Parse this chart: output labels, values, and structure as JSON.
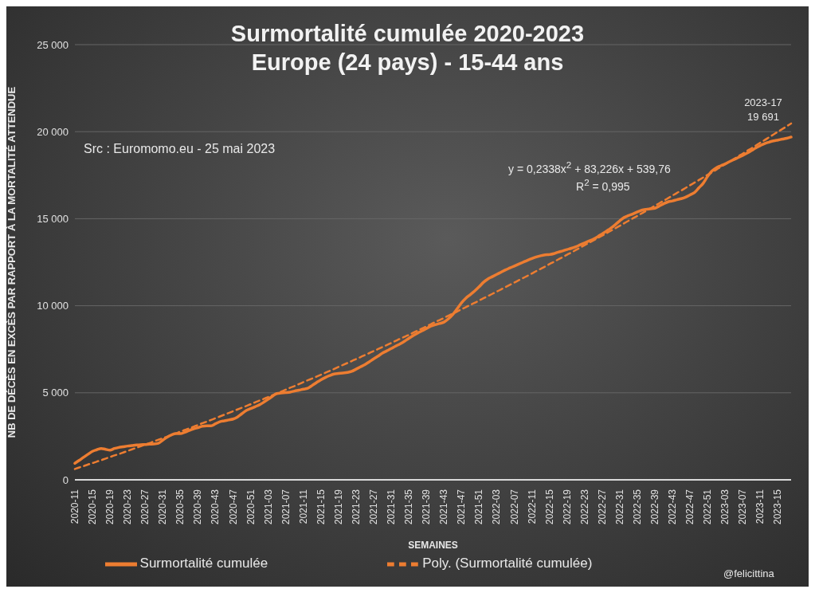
{
  "chart_data": {
    "type": "line",
    "title": "Surmortalité cumulée 2020-2023",
    "subtitle": "Europe (24 pays) - 15-44 ans",
    "xlabel": "SEMAINES",
    "ylabel": "NB DE DÉCÈS EN EXCÈS PAR RAPPORT À LA MORTALITÉ ATTENDUE",
    "categories": [
      "2020-11",
      null,
      null,
      null,
      "2020-15",
      null,
      null,
      null,
      "2020-19",
      null,
      null,
      null,
      "2020-23",
      null,
      null,
      null,
      "2020-27",
      null,
      null,
      null,
      "2020-31",
      null,
      null,
      null,
      "2020-35",
      null,
      null,
      null,
      "2020-39",
      null,
      null,
      null,
      "2020-43",
      null,
      null,
      null,
      "2020-47",
      null,
      null,
      null,
      "2020-51",
      null,
      null,
      null,
      "2021-03",
      null,
      null,
      null,
      "2021-07",
      null,
      null,
      null,
      "2021-11",
      null,
      null,
      null,
      "2021-15",
      null,
      null,
      null,
      "2021-19",
      null,
      null,
      null,
      "2021-23",
      null,
      null,
      null,
      "2021-27",
      null,
      null,
      null,
      "2021-31",
      null,
      null,
      null,
      "2021-35",
      null,
      null,
      null,
      "2021-39",
      null,
      null,
      null,
      "2021-43",
      null,
      null,
      null,
      "2021-47",
      null,
      null,
      null,
      "2021-51",
      null,
      null,
      null,
      "2022-03",
      null,
      null,
      null,
      "2022-07",
      null,
      null,
      null,
      "2022-11",
      null,
      null,
      null,
      "2022-15",
      null,
      null,
      null,
      "2022-19",
      null,
      null,
      null,
      "2022-23",
      null,
      null,
      null,
      "2022-27",
      null,
      null,
      null,
      "2022-31",
      null,
      null,
      null,
      "2022-35",
      null,
      null,
      null,
      "2022-39",
      null,
      null,
      null,
      "2022-43",
      null,
      null,
      null,
      "2022-47",
      null,
      null,
      null,
      "2022-51",
      null,
      null,
      null,
      "2023-03",
      null,
      null,
      null,
      "2023-07",
      null,
      null,
      null,
      "2023-11",
      null,
      null,
      null,
      "2023-15",
      null,
      null,
      null
    ],
    "series": [
      {
        "name": "Surmortalité cumulée",
        "color": "#ed7d31",
        "line_style": "solid",
        "values": [
          950,
          1120,
          1300,
          1470,
          1640,
          1730,
          1800,
          1750,
          1710,
          1800,
          1860,
          1900,
          1940,
          1970,
          2000,
          2020,
          2030,
          2050,
          2060,
          2100,
          2280,
          2450,
          2580,
          2650,
          2650,
          2730,
          2830,
          2930,
          3000,
          3080,
          3100,
          3100,
          3220,
          3340,
          3390,
          3440,
          3490,
          3610,
          3800,
          3980,
          4090,
          4200,
          4310,
          4460,
          4630,
          4810,
          4960,
          4990,
          5010,
          5040,
          5100,
          5150,
          5210,
          5260,
          5420,
          5590,
          5750,
          5880,
          5990,
          6080,
          6110,
          6140,
          6170,
          6230,
          6360,
          6490,
          6620,
          6780,
          6950,
          7110,
          7280,
          7410,
          7540,
          7680,
          7810,
          7960,
          8130,
          8290,
          8430,
          8560,
          8690,
          8830,
          8910,
          8980,
          9060,
          9250,
          9500,
          9830,
          10170,
          10440,
          10640,
          10850,
          11090,
          11350,
          11540,
          11670,
          11800,
          11930,
          12060,
          12170,
          12280,
          12390,
          12500,
          12610,
          12710,
          12800,
          12870,
          12920,
          12940,
          12990,
          13080,
          13150,
          13230,
          13300,
          13390,
          13500,
          13610,
          13720,
          13830,
          13970,
          14130,
          14290,
          14460,
          14660,
          14880,
          15070,
          15180,
          15280,
          15390,
          15490,
          15540,
          15570,
          15600,
          15730,
          15860,
          15970,
          16020,
          16090,
          16150,
          16240,
          16370,
          16500,
          16770,
          17040,
          17430,
          17740,
          17930,
          18040,
          18150,
          18280,
          18400,
          18520,
          18640,
          18770,
          18920,
          19070,
          19200,
          19320,
          19400,
          19470,
          19520,
          19570,
          19620,
          19691
        ]
      },
      {
        "name": "Poly. (Surmortalité cumulée)",
        "color": "#ed7d31",
        "type": "line",
        "line_style": "dashed",
        "values": [
          620,
          710,
          790,
          880,
          960,
          1050,
          1130,
          1220,
          1310,
          1400,
          1480,
          1570,
          1660,
          1750,
          1840,
          1930,
          2020,
          2110,
          2210,
          2300,
          2390,
          2480,
          2580,
          2670,
          2770,
          2860,
          2960,
          3050,
          3150,
          3250,
          3340,
          3440,
          3540,
          3640,
          3740,
          3840,
          3940,
          4040,
          4140,
          4240,
          4340,
          4450,
          4550,
          4650,
          4760,
          4860,
          4970,
          5070,
          5180,
          5290,
          5390,
          5500,
          5610,
          5720,
          5820,
          5930,
          6040,
          6150,
          6260,
          6370,
          6490,
          6600,
          6710,
          6820,
          6940,
          7050,
          7170,
          7280,
          7400,
          7510,
          7630,
          7740,
          7860,
          7980,
          8100,
          8210,
          8330,
          8450,
          8570,
          8690,
          8810,
          8940,
          9060,
          9180,
          9300,
          9430,
          9550,
          9670,
          9800,
          9920,
          10050,
          10170,
          10300,
          10430,
          10560,
          10680,
          10810,
          10940,
          11070,
          11200,
          11330,
          11460,
          11590,
          11720,
          11850,
          11990,
          12120,
          12250,
          12390,
          12520,
          12660,
          12790,
          12930,
          13060,
          13200,
          13340,
          13480,
          13610,
          13750,
          13890,
          14030,
          14170,
          14310,
          14450,
          14590,
          14740,
          14880,
          15020,
          15160,
          15310,
          15450,
          15600,
          15740,
          15890,
          16030,
          16180,
          16330,
          16480,
          16620,
          16770,
          16920,
          17070,
          17220,
          17370,
          17520,
          17670,
          17820,
          17980,
          18130,
          18280,
          18430,
          18590,
          18740,
          18900,
          19050,
          19210,
          19370,
          19520,
          19680,
          19840,
          20000,
          20150,
          20310,
          20470
        ]
      }
    ],
    "ylim": [
      0,
      25000
    ],
    "yticks": [
      0,
      {
        "value": 5000,
        "label": "5 000"
      },
      {
        "value": 10000,
        "label": "10 000"
      },
      {
        "value": 15000,
        "label": "15 000"
      },
      {
        "value": 20000,
        "label": "20 000"
      },
      {
        "value": 25000,
        "label": "25 000"
      }
    ],
    "grid": "y",
    "legend": "bottom",
    "marker": "none",
    "annotations": [
      "Src : Euromomo.eu  - 25 mai 2023",
      "y = 0,2338x$^{2}$ + 83,226x + 539,76",
      "R$^{2}$ = 0,995",
      "@felicittina",
      {
        "text": "2023-17\n19 691",
        "y": 19691
      }
    ]
  }
}
